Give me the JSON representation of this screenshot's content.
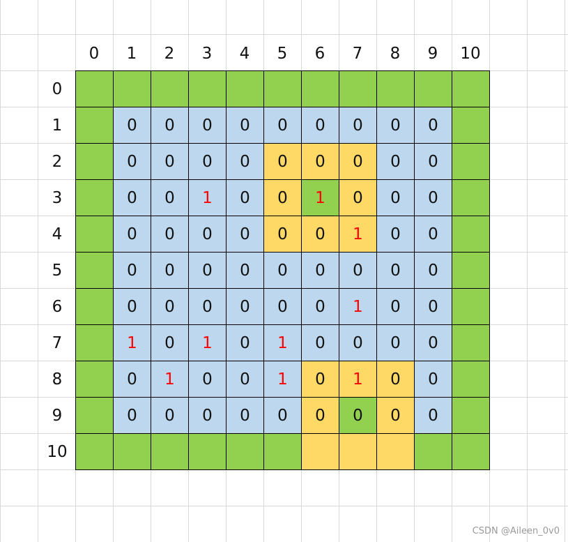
{
  "column_headers": [
    "0",
    "1",
    "2",
    "3",
    "4",
    "5",
    "6",
    "7",
    "8",
    "9",
    "10"
  ],
  "row_headers": [
    "0",
    "1",
    "2",
    "3",
    "4",
    "5",
    "6",
    "7",
    "8",
    "9",
    "10"
  ],
  "colors": {
    "G": "#92D050",
    "B": "#BDD7EE",
    "Y": "#FFD966",
    "one_text": "#FF0000"
  },
  "cells": [
    {
      "values": "...........",
      "fills": "GGGGGGGGGGG"
    },
    {
      "values": ".000000000.",
      "fills": "GBBBBBBBBBG"
    },
    {
      "values": ".000000000.",
      "fills": "GBBBBYYYBBG"
    },
    {
      "values": ".001001000.",
      "fills": "GBBBBYGYBBG"
    },
    {
      "values": ".000000100.",
      "fills": "GBBBBYYYBBG"
    },
    {
      "values": ".000000000.",
      "fills": "GBBBBBBBBBG"
    },
    {
      "values": ".000000100.",
      "fills": "GBBBBBBBBBG"
    },
    {
      "values": ".101010000.",
      "fills": "GBBBBBBBBBG"
    },
    {
      "values": ".010010100.",
      "fills": "GBBBBBYYYBG"
    },
    {
      "values": ".000000000.",
      "fills": "GBBBBBYGYBG"
    },
    {
      "values": "...........",
      "fills": "GGGGGGYYYGG"
    }
  ],
  "watermark": "CSDN @Aileen_0v0"
}
